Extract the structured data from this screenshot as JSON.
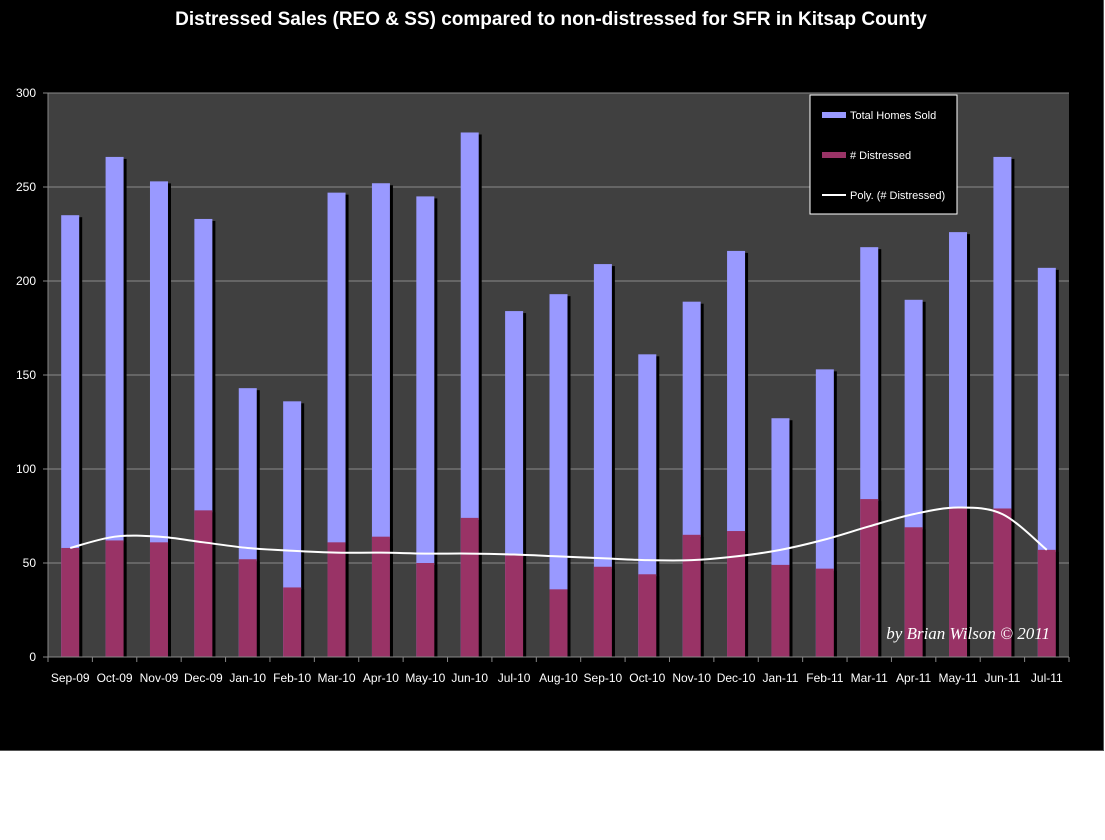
{
  "chart_data": {
    "type": "bar",
    "title": "Distressed Sales (REO & SS) compared to non-distressed for SFR in Kitsap County",
    "xlabel": "",
    "ylabel": "",
    "ylim": [
      0,
      300
    ],
    "yticks": [
      0,
      50,
      100,
      150,
      200,
      250,
      300
    ],
    "grid": true,
    "legend_position": "top-right",
    "categories": [
      "Sep-09",
      "Oct-09",
      "Nov-09",
      "Dec-09",
      "Jan-10",
      "Feb-10",
      "Mar-10",
      "Apr-10",
      "May-10",
      "Jun-10",
      "Jul-10",
      "Aug-10",
      "Sep-10",
      "Oct-10",
      "Nov-10",
      "Dec-10",
      "Jan-11",
      "Feb-11",
      "Mar-11",
      "Apr-11",
      "May-11",
      "Jun-11",
      "Jul-11"
    ],
    "series": [
      {
        "name": "Total Homes Sold",
        "type": "bar",
        "color": "#9999ff",
        "values": [
          235,
          266,
          253,
          233,
          143,
          136,
          247,
          252,
          245,
          279,
          184,
          193,
          209,
          161,
          189,
          216,
          127,
          153,
          218,
          190,
          226,
          266,
          207
        ]
      },
      {
        "name": "# Distressed",
        "type": "bar",
        "color": "#993366",
        "values": [
          58,
          62,
          61,
          78,
          52,
          37,
          61,
          64,
          50,
          74,
          54,
          36,
          48,
          44,
          65,
          67,
          49,
          47,
          84,
          69,
          79,
          79,
          57
        ]
      },
      {
        "name": "Poly. (# Distressed)",
        "type": "line",
        "color": "#ffffff",
        "values": [
          58,
          64,
          64,
          61,
          58,
          56.5,
          55.5,
          55.5,
          55,
          55,
          54.5,
          53.5,
          52.5,
          51.5,
          51.5,
          53.5,
          57,
          62.5,
          69.5,
          76,
          79.5,
          76,
          57
        ]
      }
    ],
    "annotation": "by Brian Wilson © 2011"
  }
}
